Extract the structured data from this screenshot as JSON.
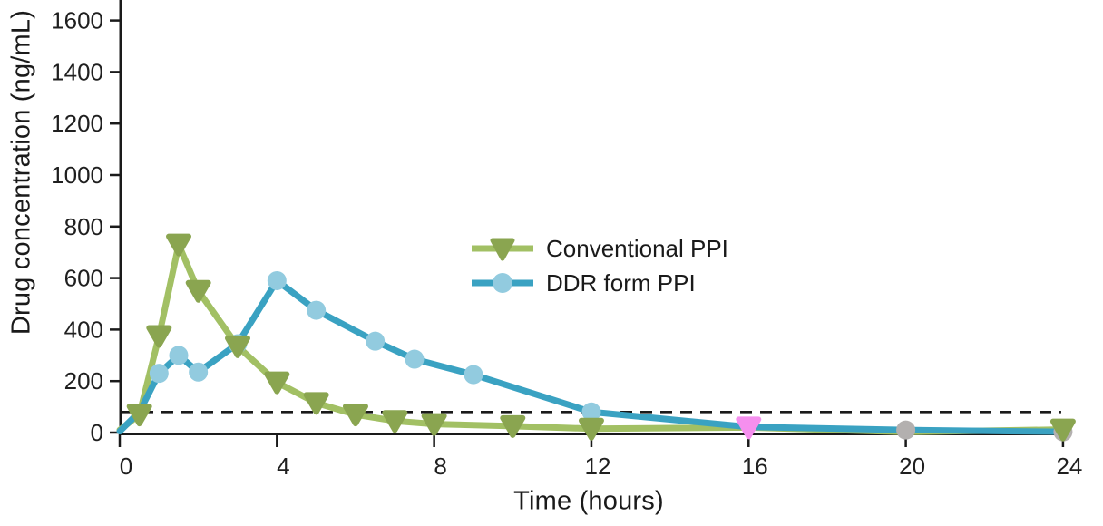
{
  "chart_data": {
    "type": "line",
    "title": "",
    "xlabel": "Time (hours)",
    "ylabel": "Drug concentration (ng/mL)",
    "xlim": [
      0,
      24
    ],
    "ylim": [
      0,
      1600
    ],
    "xticks": [
      0,
      4,
      8,
      12,
      16,
      20,
      24
    ],
    "yticks": [
      0,
      200,
      400,
      600,
      800,
      1000,
      1200,
      1400,
      1600
    ],
    "grid": false,
    "background_color": "#ffffff",
    "axis_color": "#1a1a1a",
    "tick_label_color": "#1f1f1f",
    "threshold_line": {
      "value": 80,
      "color": "#1a1a1a",
      "style": "dashed"
    },
    "legend": {
      "position": "inside-plot-center",
      "entries": [
        "Conventional PPI",
        "DDR form PPI"
      ]
    },
    "series": [
      {
        "name": "Conventional PPI",
        "marker": "triangle-down",
        "line_color": "#a2c064",
        "marker_color": "#8aa550",
        "x": [
          0,
          0.5,
          1,
          1.5,
          2,
          3,
          4,
          5,
          6,
          7,
          8,
          10,
          12,
          16,
          20,
          24
        ],
        "y": [
          10,
          70,
          375,
          730,
          550,
          335,
          195,
          115,
          70,
          45,
          33,
          25,
          15,
          20,
          2,
          12
        ],
        "hidden_markers": [
          0,
          20
        ],
        "marker_color_overrides": {
          "16": "#f58fee"
        }
      },
      {
        "name": "DDR form PPI",
        "marker": "circle",
        "line_color": "#3aa2c2",
        "marker_color": "#92cbdf",
        "x": [
          0,
          0.5,
          1,
          1.5,
          2,
          3,
          4,
          5,
          6.5,
          7.5,
          9,
          12,
          16,
          20,
          24
        ],
        "y": [
          5,
          80,
          230,
          300,
          235,
          345,
          590,
          475,
          355,
          285,
          225,
          80,
          22,
          10,
          3
        ],
        "hidden_markers": [
          0,
          0.5,
          16
        ],
        "marker_color_overrides": {
          "20": "#b3b0af",
          "24": "#b3b0af"
        }
      }
    ]
  }
}
